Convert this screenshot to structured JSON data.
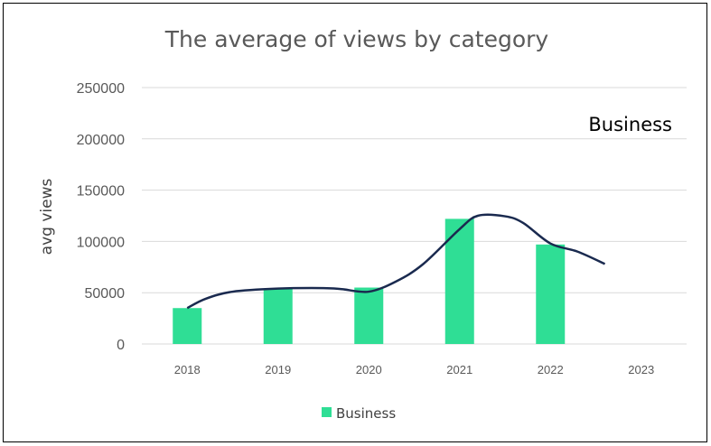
{
  "chart_data": {
    "type": "bar",
    "title": "The average of views by category",
    "xlabel": "",
    "ylabel": "avg views",
    "categories": [
      "2018",
      "2019",
      "2020",
      "2021",
      "2022",
      "2023"
    ],
    "ylim": [
      0,
      250000
    ],
    "yticks": [
      "0",
      "50000",
      "100000",
      "150000",
      "200000",
      "250000"
    ],
    "grid": true,
    "legend": "bottom",
    "series": [
      {
        "name": "Business",
        "type": "bar",
        "color": "#2fde95",
        "values": [
          35000,
          54000,
          55000,
          122000,
          97000,
          null
        ]
      },
      {
        "type": "line",
        "color": "#1a2a4f",
        "x": [
          2018,
          2018.2,
          2018.5,
          2019,
          2019.5,
          2019.7,
          2020,
          2020.3,
          2020.6,
          2021,
          2021.2,
          2021.5,
          2021.7,
          2022,
          2022.3,
          2022.6
        ],
        "values": [
          35000,
          44000,
          51000,
          54000,
          54500,
          53500,
          51000,
          61000,
          78000,
          112000,
          125000,
          124500,
          118000,
          98000,
          90000,
          78000
        ]
      }
    ],
    "annotations": [
      "Business"
    ]
  }
}
